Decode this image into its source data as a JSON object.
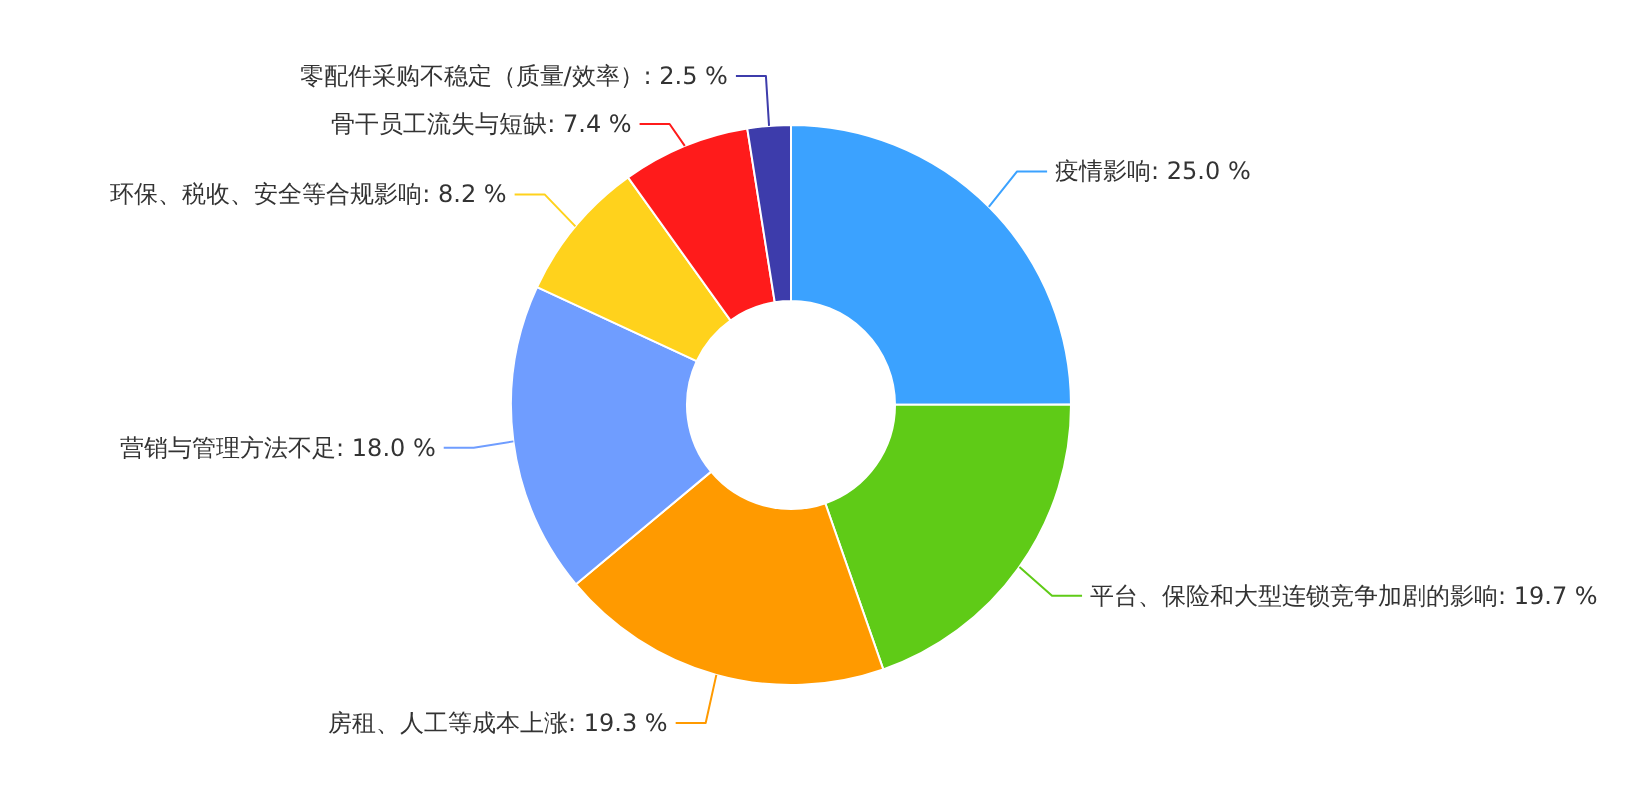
{
  "chart_data": {
    "type": "donut",
    "categories": [
      "疫情影响",
      "平台、保险和大型连锁竞争加剧的影响",
      "房租、人工等成本上涨",
      "营销与管理方法不足",
      "环保、税收、安全等合规影响",
      "骨干员工流失与短缺",
      "零配件采购不稳定（质量/效率）"
    ],
    "values": [
      25.0,
      19.7,
      19.3,
      18.0,
      8.2,
      7.4,
      2.5
    ],
    "value_labels": [
      "25.0 %",
      "19.7 %",
      "19.3 %",
      "18.0 %",
      "8.2 %",
      "7.4 %",
      "2.5 %"
    ],
    "colors": [
      "#3ba2ff",
      "#5fcb17",
      "#ff9a00",
      "#6f9dff",
      "#ffd21c",
      "#ff1b1b",
      "#3d3cab"
    ]
  }
}
